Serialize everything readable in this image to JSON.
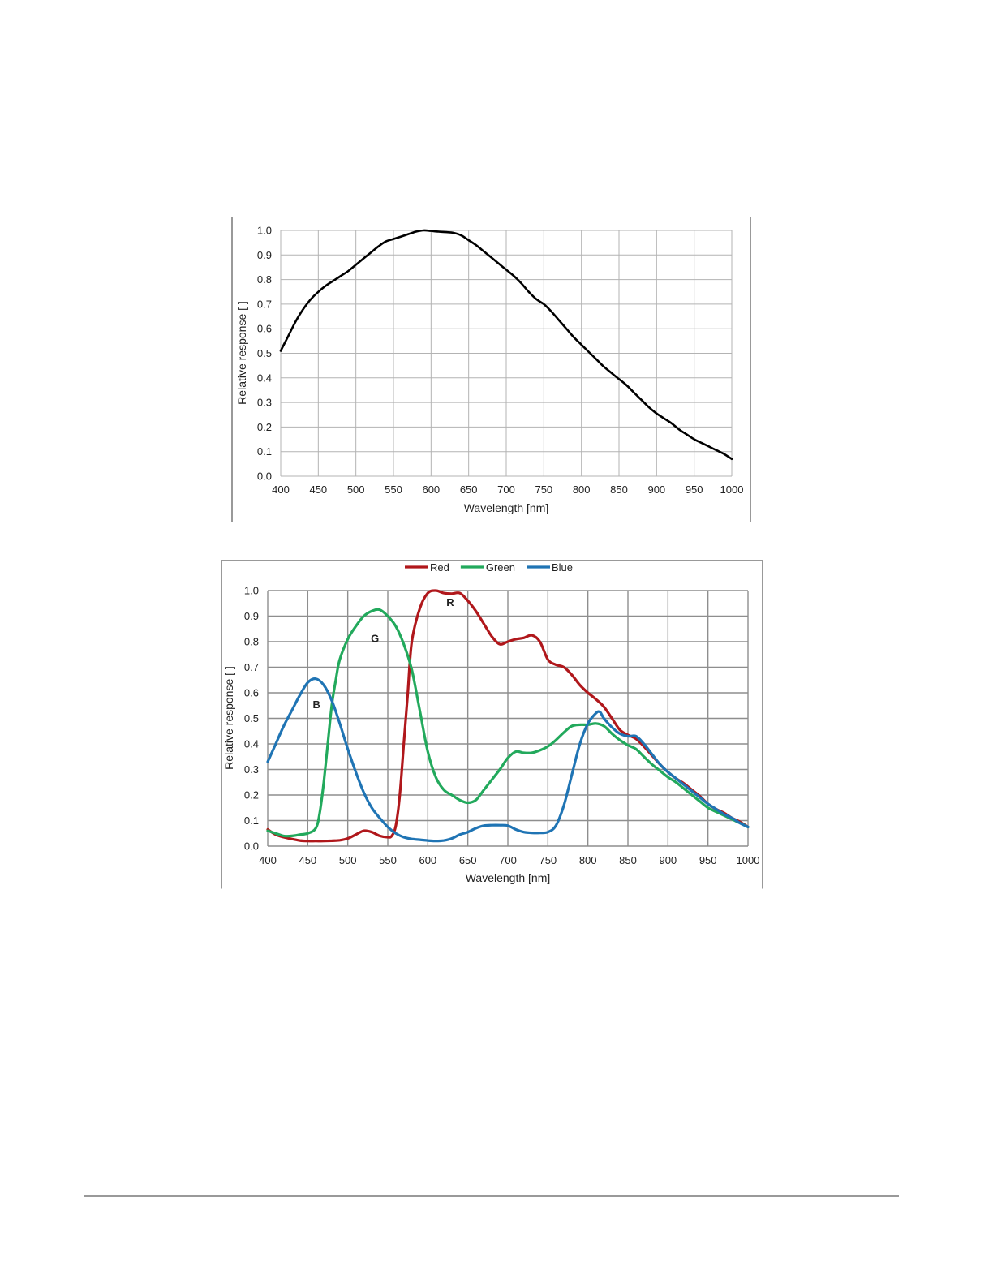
{
  "colors": {
    "mono": "#000000",
    "red": "#b0171b",
    "green": "#22a95c",
    "blue": "#1f74b4"
  },
  "chart_data": [
    {
      "type": "line",
      "title": "",
      "xlabel": "Wavelength [nm]",
      "ylabel": "Relative response [ ]",
      "xlim": [
        400,
        1000
      ],
      "ylim": [
        0,
        1.0
      ],
      "xticks": [
        "400",
        "450",
        "500",
        "550",
        "600",
        "650",
        "700",
        "750",
        "800",
        "850",
        "900",
        "950",
        "1000"
      ],
      "yticks": [
        "0.0",
        "0.1",
        "0.2",
        "0.3",
        "0.4",
        "0.5",
        "0.6",
        "0.7",
        "0.8",
        "0.9",
        "1.0"
      ],
      "grid": true,
      "series": [
        {
          "color": "#000000",
          "points": [
            [
              400,
              0.51
            ],
            [
              410,
              0.57
            ],
            [
              420,
              0.63
            ],
            [
              430,
              0.68
            ],
            [
              440,
              0.72
            ],
            [
              450,
              0.75
            ],
            [
              460,
              0.775
            ],
            [
              470,
              0.795
            ],
            [
              480,
              0.815
            ],
            [
              490,
              0.835
            ],
            [
              500,
              0.86
            ],
            [
              510,
              0.885
            ],
            [
              520,
              0.91
            ],
            [
              530,
              0.935
            ],
            [
              540,
              0.955
            ],
            [
              550,
              0.965
            ],
            [
              560,
              0.975
            ],
            [
              570,
              0.985
            ],
            [
              580,
              0.995
            ],
            [
              590,
              1.0
            ],
            [
              600,
              0.998
            ],
            [
              610,
              0.995
            ],
            [
              620,
              0.993
            ],
            [
              630,
              0.99
            ],
            [
              640,
              0.98
            ],
            [
              650,
              0.96
            ],
            [
              660,
              0.94
            ],
            [
              670,
              0.915
            ],
            [
              680,
              0.89
            ],
            [
              690,
              0.865
            ],
            [
              700,
              0.84
            ],
            [
              710,
              0.815
            ],
            [
              720,
              0.785
            ],
            [
              730,
              0.75
            ],
            [
              740,
              0.72
            ],
            [
              750,
              0.7
            ],
            [
              760,
              0.67
            ],
            [
              770,
              0.635
            ],
            [
              780,
              0.6
            ],
            [
              790,
              0.565
            ],
            [
              800,
              0.535
            ],
            [
              810,
              0.505
            ],
            [
              820,
              0.475
            ],
            [
              830,
              0.445
            ],
            [
              840,
              0.42
            ],
            [
              850,
              0.395
            ],
            [
              860,
              0.37
            ],
            [
              870,
              0.34
            ],
            [
              880,
              0.31
            ],
            [
              890,
              0.28
            ],
            [
              900,
              0.255
            ],
            [
              910,
              0.235
            ],
            [
              920,
              0.215
            ],
            [
              930,
              0.19
            ],
            [
              940,
              0.17
            ],
            [
              950,
              0.15
            ],
            [
              960,
              0.135
            ],
            [
              970,
              0.12
            ],
            [
              980,
              0.105
            ],
            [
              990,
              0.09
            ],
            [
              1000,
              0.07
            ]
          ]
        }
      ]
    },
    {
      "type": "line",
      "title": "",
      "xlabel": "Wavelength [nm]",
      "ylabel": "Relative response [ ]",
      "xlim": [
        400,
        1000
      ],
      "ylim": [
        0,
        1.0
      ],
      "xticks": [
        "400",
        "450",
        "500",
        "550",
        "600",
        "650",
        "700",
        "750",
        "800",
        "850",
        "900",
        "950",
        "1000"
      ],
      "yticks": [
        "0.0",
        "0.1",
        "0.2",
        "0.3",
        "0.4",
        "0.5",
        "0.6",
        "0.7",
        "0.8",
        "0.9",
        "1.0"
      ],
      "grid": true,
      "legend_position": "top-center",
      "annotations": [
        {
          "text": "R",
          "x": 628,
          "y": 0.955
        },
        {
          "text": "G",
          "x": 534,
          "y": 0.815
        },
        {
          "text": "B",
          "x": 461,
          "y": 0.555
        }
      ],
      "series": [
        {
          "name": "Red",
          "color": "#b0171b",
          "points": [
            [
              400,
              0.065
            ],
            [
              410,
              0.045
            ],
            [
              420,
              0.035
            ],
            [
              430,
              0.028
            ],
            [
              440,
              0.022
            ],
            [
              450,
              0.02
            ],
            [
              460,
              0.02
            ],
            [
              470,
              0.02
            ],
            [
              480,
              0.021
            ],
            [
              490,
              0.023
            ],
            [
              500,
              0.03
            ],
            [
              510,
              0.045
            ],
            [
              520,
              0.06
            ],
            [
              530,
              0.055
            ],
            [
              540,
              0.04
            ],
            [
              550,
              0.035
            ],
            [
              555,
              0.04
            ],
            [
              560,
              0.08
            ],
            [
              565,
              0.2
            ],
            [
              570,
              0.4
            ],
            [
              575,
              0.6
            ],
            [
              580,
              0.8
            ],
            [
              590,
              0.93
            ],
            [
              600,
              0.99
            ],
            [
              610,
              1.0
            ],
            [
              620,
              0.99
            ],
            [
              630,
              0.988
            ],
            [
              640,
              0.99
            ],
            [
              650,
              0.96
            ],
            [
              660,
              0.92
            ],
            [
              670,
              0.87
            ],
            [
              680,
              0.82
            ],
            [
              690,
              0.79
            ],
            [
              700,
              0.8
            ],
            [
              710,
              0.81
            ],
            [
              720,
              0.815
            ],
            [
              730,
              0.825
            ],
            [
              740,
              0.8
            ],
            [
              750,
              0.73
            ],
            [
              760,
              0.71
            ],
            [
              770,
              0.7
            ],
            [
              780,
              0.67
            ],
            [
              790,
              0.63
            ],
            [
              800,
              0.6
            ],
            [
              810,
              0.575
            ],
            [
              820,
              0.545
            ],
            [
              830,
              0.5
            ],
            [
              840,
              0.455
            ],
            [
              850,
              0.435
            ],
            [
              860,
              0.42
            ],
            [
              870,
              0.39
            ],
            [
              880,
              0.355
            ],
            [
              890,
              0.32
            ],
            [
              900,
              0.29
            ],
            [
              910,
              0.265
            ],
            [
              920,
              0.245
            ],
            [
              930,
              0.22
            ],
            [
              940,
              0.195
            ],
            [
              950,
              0.165
            ],
            [
              960,
              0.145
            ],
            [
              970,
              0.13
            ],
            [
              980,
              0.11
            ],
            [
              990,
              0.095
            ],
            [
              1000,
              0.075
            ]
          ]
        },
        {
          "name": "Green",
          "color": "#22a95c",
          "points": [
            [
              400,
              0.06
            ],
            [
              410,
              0.05
            ],
            [
              420,
              0.04
            ],
            [
              430,
              0.04
            ],
            [
              440,
              0.045
            ],
            [
              450,
              0.05
            ],
            [
              460,
              0.07
            ],
            [
              465,
              0.13
            ],
            [
              470,
              0.25
            ],
            [
              475,
              0.4
            ],
            [
              480,
              0.55
            ],
            [
              485,
              0.65
            ],
            [
              490,
              0.73
            ],
            [
              500,
              0.81
            ],
            [
              510,
              0.86
            ],
            [
              520,
              0.9
            ],
            [
              530,
              0.92
            ],
            [
              540,
              0.925
            ],
            [
              550,
              0.9
            ],
            [
              560,
              0.86
            ],
            [
              570,
              0.79
            ],
            [
              580,
              0.69
            ],
            [
              590,
              0.53
            ],
            [
              600,
              0.37
            ],
            [
              610,
              0.27
            ],
            [
              620,
              0.22
            ],
            [
              630,
              0.2
            ],
            [
              640,
              0.18
            ],
            [
              650,
              0.17
            ],
            [
              660,
              0.18
            ],
            [
              670,
              0.22
            ],
            [
              680,
              0.26
            ],
            [
              690,
              0.3
            ],
            [
              700,
              0.345
            ],
            [
              710,
              0.37
            ],
            [
              720,
              0.365
            ],
            [
              730,
              0.365
            ],
            [
              740,
              0.375
            ],
            [
              750,
              0.39
            ],
            [
              760,
              0.415
            ],
            [
              770,
              0.445
            ],
            [
              780,
              0.47
            ],
            [
              790,
              0.475
            ],
            [
              800,
              0.475
            ],
            [
              810,
              0.48
            ],
            [
              820,
              0.47
            ],
            [
              830,
              0.44
            ],
            [
              840,
              0.415
            ],
            [
              850,
              0.395
            ],
            [
              860,
              0.38
            ],
            [
              870,
              0.35
            ],
            [
              880,
              0.32
            ],
            [
              890,
              0.295
            ],
            [
              900,
              0.27
            ],
            [
              910,
              0.25
            ],
            [
              920,
              0.225
            ],
            [
              930,
              0.2
            ],
            [
              940,
              0.175
            ],
            [
              950,
              0.15
            ],
            [
              960,
              0.135
            ],
            [
              970,
              0.12
            ],
            [
              980,
              0.105
            ],
            [
              990,
              0.09
            ],
            [
              1000,
              0.075
            ]
          ]
        },
        {
          "name": "Blue",
          "color": "#1f74b4",
          "points": [
            [
              400,
              0.33
            ],
            [
              410,
              0.4
            ],
            [
              420,
              0.47
            ],
            [
              430,
              0.53
            ],
            [
              440,
              0.59
            ],
            [
              450,
              0.64
            ],
            [
              460,
              0.655
            ],
            [
              470,
              0.63
            ],
            [
              480,
              0.57
            ],
            [
              490,
              0.48
            ],
            [
              500,
              0.38
            ],
            [
              510,
              0.29
            ],
            [
              520,
              0.21
            ],
            [
              530,
              0.15
            ],
            [
              540,
              0.11
            ],
            [
              550,
              0.075
            ],
            [
              560,
              0.05
            ],
            [
              570,
              0.035
            ],
            [
              580,
              0.028
            ],
            [
              590,
              0.025
            ],
            [
              600,
              0.022
            ],
            [
              610,
              0.02
            ],
            [
              620,
              0.022
            ],
            [
              630,
              0.03
            ],
            [
              640,
              0.045
            ],
            [
              650,
              0.055
            ],
            [
              660,
              0.07
            ],
            [
              670,
              0.08
            ],
            [
              680,
              0.082
            ],
            [
              690,
              0.082
            ],
            [
              700,
              0.08
            ],
            [
              710,
              0.065
            ],
            [
              720,
              0.055
            ],
            [
              730,
              0.052
            ],
            [
              740,
              0.052
            ],
            [
              750,
              0.055
            ],
            [
              760,
              0.08
            ],
            [
              770,
              0.16
            ],
            [
              780,
              0.28
            ],
            [
              790,
              0.4
            ],
            [
              800,
              0.48
            ],
            [
              810,
              0.52
            ],
            [
              815,
              0.525
            ],
            [
              820,
              0.5
            ],
            [
              830,
              0.465
            ],
            [
              840,
              0.44
            ],
            [
              850,
              0.43
            ],
            [
              860,
              0.43
            ],
            [
              870,
              0.4
            ],
            [
              880,
              0.36
            ],
            [
              890,
              0.32
            ],
            [
              900,
              0.29
            ],
            [
              910,
              0.265
            ],
            [
              920,
              0.24
            ],
            [
              930,
              0.215
            ],
            [
              940,
              0.19
            ],
            [
              950,
              0.165
            ],
            [
              960,
              0.145
            ],
            [
              970,
              0.125
            ],
            [
              980,
              0.11
            ],
            [
              990,
              0.09
            ],
            [
              1000,
              0.075
            ]
          ]
        }
      ]
    }
  ]
}
